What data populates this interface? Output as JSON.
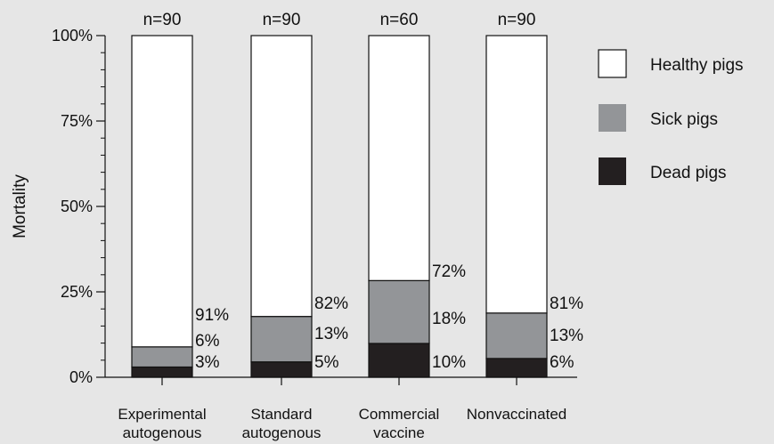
{
  "chart_data": {
    "type": "bar",
    "stacked": true,
    "ylabel": "Mortality",
    "ylim": [
      0,
      100
    ],
    "yticks": [
      "0%",
      "25%",
      "50%",
      "75%",
      "100%"
    ],
    "categories": [
      [
        "Experimental",
        "autogenous"
      ],
      [
        "Standard",
        "autogenous"
      ],
      [
        "Commercial",
        "vaccine"
      ],
      [
        "Nonvaccinated"
      ]
    ],
    "n_labels": [
      "n=90",
      "n=90",
      "n=60",
      "n=90"
    ],
    "series": [
      {
        "name": "Dead pigs",
        "color": "#231f20",
        "values": [
          3,
          4.5,
          9.9,
          5.5
        ],
        "labels": [
          "3%",
          "5%",
          "10%",
          "6%"
        ]
      },
      {
        "name": "Sick pigs",
        "color": "#939598",
        "values": [
          5.9,
          13.3,
          18.4,
          13.3
        ],
        "labels": [
          "6%",
          "13%",
          "18%",
          "13%"
        ]
      },
      {
        "name": "Healthy pigs",
        "color": "#ffffff",
        "values": [
          91.1,
          82.2,
          71.7,
          81.2
        ],
        "labels": [
          "91%",
          "82%",
          "72%",
          "81%"
        ]
      }
    ],
    "legend": {
      "position": "right",
      "order": [
        "Healthy pigs",
        "Sick pigs",
        "Dead pigs"
      ]
    }
  }
}
